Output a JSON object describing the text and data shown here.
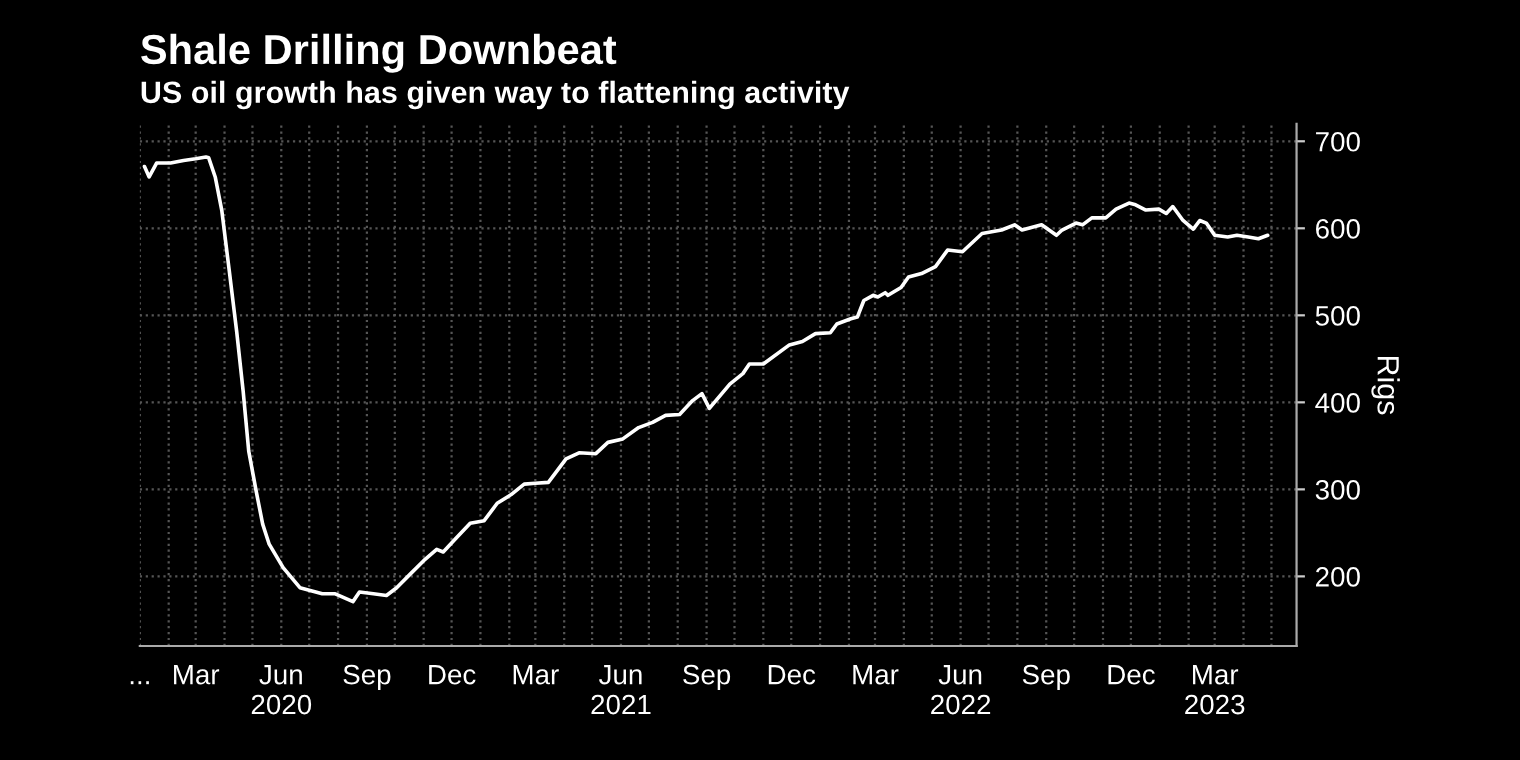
{
  "chart_data": {
    "type": "line",
    "title": "Shale Drilling Downbeat",
    "subtitle": "US oil growth has given way to flattening activity",
    "ylabel": "Rigs",
    "x": [
      "2020-01-06",
      "2020-01-11",
      "2020-01-19",
      "2020-02-03",
      "2020-02-17",
      "2020-03-01",
      "2020-03-12",
      "2020-03-15",
      "2020-03-22",
      "2020-03-29",
      "2020-04-06",
      "2020-04-14",
      "2020-04-21",
      "2020-04-27",
      "2020-05-05",
      "2020-05-12",
      "2020-05-19",
      "2020-06-03",
      "2020-06-21",
      "2020-07-05",
      "2020-07-15",
      "2020-07-29",
      "2020-08-17",
      "2020-08-24",
      "2020-09-08",
      "2020-09-22",
      "2020-10-03",
      "2020-10-17",
      "2020-11-01",
      "2020-11-15",
      "2020-11-22",
      "2020-12-06",
      "2020-12-21",
      "2021-01-05",
      "2021-01-19",
      "2021-02-03",
      "2021-02-17",
      "2021-03-01",
      "2021-03-15",
      "2021-04-03",
      "2021-04-17",
      "2021-05-05",
      "2021-05-18",
      "2021-06-03",
      "2021-06-20",
      "2021-07-05",
      "2021-07-19",
      "2021-08-03",
      "2021-08-17",
      "2021-08-27",
      "2021-09-04",
      "2021-09-26",
      "2021-10-10",
      "2021-10-17",
      "2021-11-01",
      "2021-11-29",
      "2021-12-13",
      "2021-12-27",
      "2022-01-12",
      "2022-01-19",
      "2022-02-03",
      "2022-02-10",
      "2022-02-17",
      "2022-02-27",
      "2022-03-04",
      "2022-03-12",
      "2022-03-15",
      "2022-03-29",
      "2022-04-06",
      "2022-04-20",
      "2022-05-05",
      "2022-05-18",
      "2022-06-03",
      "2022-06-24",
      "2022-07-15",
      "2022-07-29",
      "2022-08-06",
      "2022-08-27",
      "2022-09-12",
      "2022-09-18",
      "2022-10-03",
      "2022-10-10",
      "2022-10-20",
      "2022-11-04",
      "2022-11-15",
      "2022-11-29",
      "2022-12-06",
      "2022-12-17",
      "2022-12-31",
      "2023-01-08",
      "2023-01-15",
      "2023-01-26",
      "2023-02-06",
      "2023-02-13",
      "2023-02-20",
      "2023-03-01",
      "2023-03-15",
      "2023-03-25",
      "2023-04-06",
      "2023-04-17",
      "2023-04-27"
    ],
    "series": [
      {
        "color": "#ffffff",
        "values": [
          671,
          659,
          675,
          675,
          678,
          680,
          682,
          681,
          659,
          621,
          552,
          482,
          413,
          344,
          298,
          260,
          237,
          210,
          187,
          183,
          180,
          180,
          171,
          182,
          180,
          178,
          187,
          202,
          218,
          231,
          228,
          244,
          261,
          264,
          284,
          294,
          306,
          307,
          308,
          335,
          342,
          341,
          354,
          358,
          371,
          377,
          385,
          386,
          402,
          410,
          393,
          421,
          433,
          444,
          444,
          466,
          470,
          479,
          480,
          490,
          496,
          498,
          517,
          523,
          521,
          526,
          523,
          532,
          544,
          548,
          556,
          575,
          573,
          594,
          598,
          604,
          598,
          604,
          592,
          598,
          606,
          604,
          612,
          612,
          622,
          629,
          627,
          621,
          622,
          617,
          625,
          609,
          599,
          609,
          606,
          592,
          590,
          592,
          590,
          588,
          592
        ]
      }
    ],
    "xlim": [
      "2020-01-01",
      "2023-05-28"
    ],
    "ylim": [
      120,
      720
    ],
    "yticks": [
      200,
      300,
      400,
      500,
      600,
      700
    ],
    "xticks": [
      {
        "value": "2020-01-01",
        "label": "..."
      },
      {
        "value": "2020-02-01",
        "label": null
      },
      {
        "value": "2020-03-01",
        "label": "Mar"
      },
      {
        "value": "2020-04-01",
        "label": null
      },
      {
        "value": "2020-05-01",
        "label": null
      },
      {
        "value": "2020-06-01",
        "label": "Jun\n2020"
      },
      {
        "value": "2020-07-01",
        "label": null
      },
      {
        "value": "2020-08-01",
        "label": null
      },
      {
        "value": "2020-09-01",
        "label": "Sep"
      },
      {
        "value": "2020-10-01",
        "label": null
      },
      {
        "value": "2020-11-01",
        "label": null
      },
      {
        "value": "2020-12-01",
        "label": "Dec"
      },
      {
        "value": "2021-01-01",
        "label": null
      },
      {
        "value": "2021-02-01",
        "label": null
      },
      {
        "value": "2021-03-01",
        "label": "Mar"
      },
      {
        "value": "2021-04-01",
        "label": null
      },
      {
        "value": "2021-05-01",
        "label": null
      },
      {
        "value": "2021-06-01",
        "label": "Jun\n2021"
      },
      {
        "value": "2021-07-01",
        "label": null
      },
      {
        "value": "2021-08-01",
        "label": null
      },
      {
        "value": "2021-09-01",
        "label": "Sep"
      },
      {
        "value": "2021-10-01",
        "label": null
      },
      {
        "value": "2021-11-01",
        "label": null
      },
      {
        "value": "2021-12-01",
        "label": "Dec"
      },
      {
        "value": "2022-01-01",
        "label": null
      },
      {
        "value": "2022-02-01",
        "label": null
      },
      {
        "value": "2022-03-01",
        "label": "Mar"
      },
      {
        "value": "2022-04-01",
        "label": null
      },
      {
        "value": "2022-05-01",
        "label": null
      },
      {
        "value": "2022-06-01",
        "label": "Jun\n2022"
      },
      {
        "value": "2022-07-01",
        "label": null
      },
      {
        "value": "2022-08-01",
        "label": null
      },
      {
        "value": "2022-09-01",
        "label": "Sep"
      },
      {
        "value": "2022-10-01",
        "label": null
      },
      {
        "value": "2022-11-01",
        "label": null
      },
      {
        "value": "2022-12-01",
        "label": "Dec"
      },
      {
        "value": "2023-01-01",
        "label": null
      },
      {
        "value": "2023-02-01",
        "label": null
      },
      {
        "value": "2023-03-01",
        "label": "Mar\n2023"
      },
      {
        "value": "2023-04-01",
        "label": null
      },
      {
        "value": "2023-05-01",
        "label": null
      }
    ],
    "grid": true,
    "line_style": "solid"
  }
}
